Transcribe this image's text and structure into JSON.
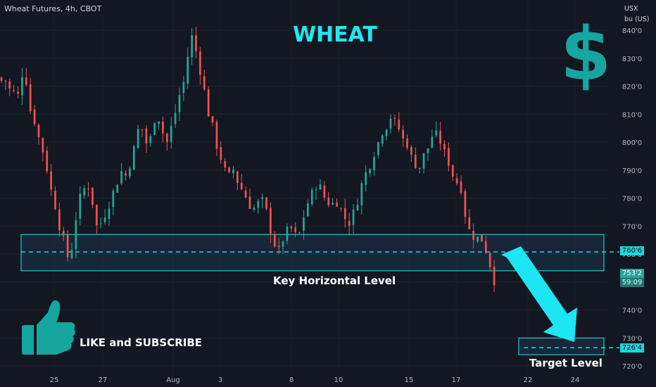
{
  "header": {
    "symbol_text": "Wheat Futures, 4h, CBOT"
  },
  "price_scale": {
    "currency": "USX",
    "unit": "bu (US)"
  },
  "overlays": {
    "title": "WHEAT",
    "dollar_sign": "$",
    "key_level_label": "Key Horizontal Level",
    "subscribe_label": "LIKE and SUBSCRIBE",
    "target_label": "Target Level",
    "thumb_icon": "thumbs-up-icon",
    "arrow_icon": "arrow-down-right-icon"
  },
  "badges": {
    "key_level": "760'6",
    "last_price": "753'2",
    "countdown": "59:09",
    "target": "726'4"
  },
  "colors": {
    "background": "#131722",
    "up": "#26a69a",
    "down": "#ef5350",
    "accent": "#22e7f0",
    "dollar": "#15a6a0"
  },
  "chart_data": {
    "type": "candlestick",
    "title": "WHEAT",
    "y_ticks": [
      "720'0",
      "730'0",
      "740'0",
      "750'0",
      "760'0",
      "770'0",
      "780'0",
      "790'0",
      "800'0",
      "810'0",
      "820'0",
      "830'0",
      "840'0"
    ],
    "ylim": [
      717,
      845
    ],
    "x_ticks": [
      "25",
      "27",
      "Aug",
      "3",
      "8",
      "10",
      "15",
      "17",
      "22",
      "24"
    ],
    "key_zone": {
      "low": 754,
      "high": 767,
      "level": 760.75
    },
    "target_zone": {
      "low": 724,
      "high": 730,
      "level": 726.5
    },
    "last_price": 753.25,
    "close_path": [
      [
        0,
        822
      ],
      [
        3,
        822
      ],
      [
        5,
        819
      ],
      [
        8,
        818
      ],
      [
        10,
        815
      ],
      [
        13,
        824
      ],
      [
        15,
        826
      ],
      [
        18,
        812
      ],
      [
        21,
        808
      ],
      [
        23,
        803
      ],
      [
        26,
        798
      ],
      [
        29,
        791
      ],
      [
        31,
        784
      ],
      [
        34,
        779
      ],
      [
        36,
        771
      ],
      [
        39,
        768
      ],
      [
        41,
        760
      ],
      [
        44,
        758
      ],
      [
        47,
        770
      ],
      [
        49,
        778
      ],
      [
        52,
        783
      ],
      [
        55,
        784
      ],
      [
        57,
        784
      ],
      [
        60,
        771
      ],
      [
        62,
        769
      ],
      [
        65,
        773
      ],
      [
        68,
        776
      ],
      [
        70,
        780
      ],
      [
        73,
        784
      ],
      [
        75,
        787
      ],
      [
        78,
        791
      ],
      [
        80,
        787
      ],
      [
        83,
        794
      ],
      [
        86,
        800
      ],
      [
        88,
        806
      ],
      [
        91,
        804
      ],
      [
        93,
        799
      ],
      [
        96,
        802
      ],
      [
        99,
        811
      ],
      [
        101,
        808
      ],
      [
        104,
        802
      ],
      [
        106,
        800
      ],
      [
        109,
        806
      ],
      [
        112,
        812
      ],
      [
        114,
        817
      ],
      [
        117,
        822
      ],
      [
        119,
        830
      ],
      [
        122,
        838
      ],
      [
        124,
        834
      ],
      [
        127,
        826
      ],
      [
        130,
        818
      ],
      [
        132,
        811
      ],
      [
        135,
        806
      ],
      [
        137,
        800
      ],
      [
        140,
        795
      ],
      [
        143,
        790
      ],
      [
        145,
        787
      ],
      [
        148,
        791
      ],
      [
        150,
        787
      ],
      [
        153,
        784
      ],
      [
        156,
        781
      ],
      [
        158,
        778
      ],
      [
        161,
        776
      ],
      [
        164,
        778
      ],
      [
        166,
        780
      ],
      [
        169,
        777
      ],
      [
        171,
        771
      ],
      [
        174,
        765
      ],
      [
        177,
        760
      ],
      [
        179,
        764
      ],
      [
        182,
        767
      ],
      [
        184,
        770
      ],
      [
        187,
        768
      ],
      [
        190,
        765
      ],
      [
        192,
        771
      ],
      [
        195,
        776
      ],
      [
        197,
        780
      ],
      [
        200,
        783
      ],
      [
        203,
        786
      ],
      [
        205,
        782
      ],
      [
        208,
        779
      ],
      [
        210,
        778
      ],
      [
        213,
        778
      ],
      [
        216,
        779
      ],
      [
        218,
        774
      ],
      [
        221,
        772
      ],
      [
        223,
        771
      ],
      [
        226,
        776
      ],
      [
        229,
        781
      ],
      [
        231,
        786
      ],
      [
        234,
        790
      ],
      [
        236,
        792
      ],
      [
        239,
        797
      ],
      [
        242,
        801
      ],
      [
        244,
        804
      ],
      [
        247,
        806
      ],
      [
        249,
        809
      ],
      [
        252,
        807
      ],
      [
        255,
        804
      ],
      [
        257,
        801
      ],
      [
        260,
        799
      ],
      [
        262,
        795
      ],
      [
        265,
        792
      ],
      [
        268,
        791
      ],
      [
        270,
        795
      ],
      [
        273,
        798
      ],
      [
        275,
        802
      ],
      [
        278,
        803
      ],
      [
        281,
        800
      ],
      [
        283,
        797
      ],
      [
        286,
        793
      ],
      [
        288,
        789
      ],
      [
        291,
        786
      ],
      [
        294,
        784
      ],
      [
        296,
        776
      ],
      [
        299,
        769
      ],
      [
        301,
        767
      ],
      [
        304,
        765
      ],
      [
        306,
        767
      ],
      [
        309,
        763
      ],
      [
        312,
        758
      ],
      [
        315,
        750
      ],
      [
        317,
        752
      ]
    ],
    "close_last_index": 317
  }
}
